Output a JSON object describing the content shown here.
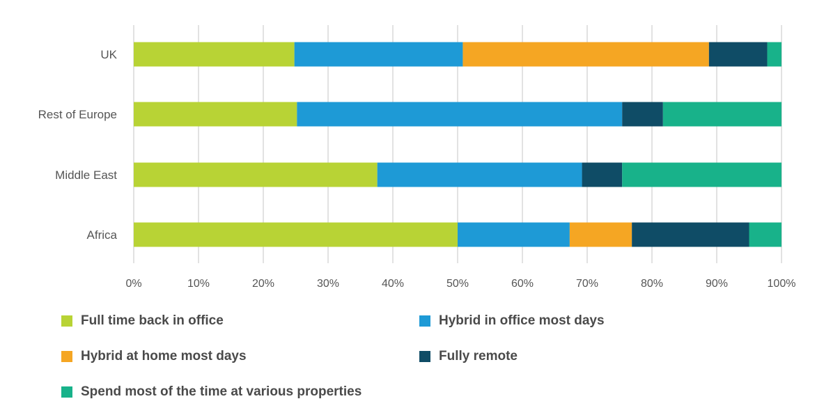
{
  "chart_data": {
    "type": "bar",
    "orientation": "horizontal",
    "stacked": true,
    "title": "",
    "xlabel": "",
    "ylabel": "",
    "xlim": [
      0,
      100
    ],
    "x_ticks": [
      "0%",
      "10%",
      "20%",
      "30%",
      "40%",
      "50%",
      "60%",
      "70%",
      "80%",
      "90%",
      "100%"
    ],
    "grid": true,
    "legend_position": "bottom",
    "categories": [
      "UK",
      "Rest of Europe",
      "Middle East",
      "Africa"
    ],
    "series": [
      {
        "name": "Full time back in office",
        "color": "#b8d335",
        "values": [
          24.8,
          25.2,
          37.6,
          50.0
        ]
      },
      {
        "name": "Hybrid in office most days",
        "color": "#1e9ad6",
        "values": [
          26.0,
          50.2,
          31.6,
          17.3
        ]
      },
      {
        "name": "Hybrid at home most days",
        "color": "#f5a623",
        "values": [
          38.0,
          0,
          0,
          9.6
        ]
      },
      {
        "name": "Fully remote",
        "color": "#0f4c66",
        "values": [
          9.0,
          6.3,
          6.2,
          18.1
        ]
      },
      {
        "name": "Spend most of the time at various properties",
        "color": "#18b28a",
        "values": [
          2.2,
          18.3,
          24.6,
          5.0
        ]
      }
    ]
  },
  "legend": {
    "items": [
      {
        "label": "Full time back in office",
        "color": "#b8d335"
      },
      {
        "label": "Hybrid in office most days",
        "color": "#1e9ad6"
      },
      {
        "label": "Hybrid at home most days",
        "color": "#f5a623"
      },
      {
        "label": "Fully remote",
        "color": "#0f4c66"
      },
      {
        "label": "Spend most of the time at various properties",
        "color": "#18b28a"
      }
    ]
  },
  "style": {
    "grid_color": "#e2e2e2",
    "tick_label_color": "#555555",
    "category_label_color": "#555555"
  }
}
